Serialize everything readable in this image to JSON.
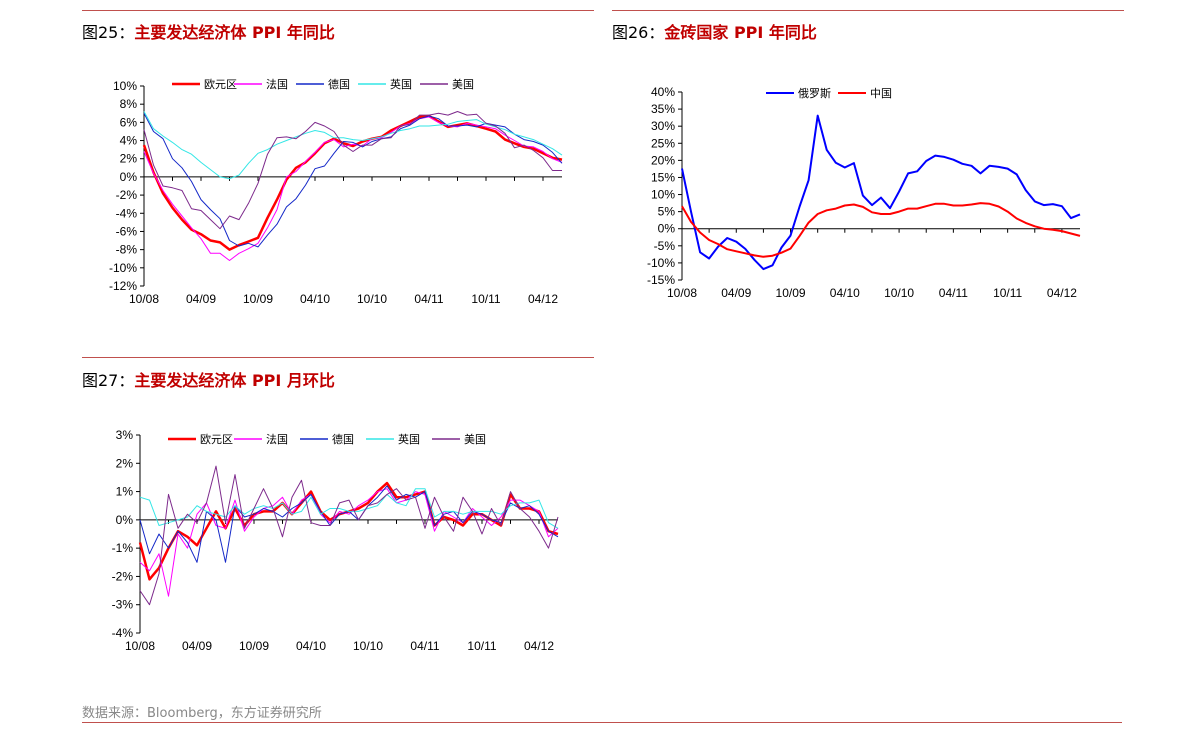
{
  "figures": [
    {
      "id": "fig25",
      "label": "图25：",
      "title": "主要发达经济体 PPI 年同比"
    },
    {
      "id": "fig26",
      "label": "图26：",
      "title": "金砖国家 PPI 年同比"
    },
    {
      "id": "fig27",
      "label": "图27：",
      "title": "主要发达经济体 PPI 月环比"
    }
  ],
  "source": "数据来源：Bloomberg，东方证券研究所",
  "chart_data": [
    {
      "type": "line",
      "ylim": [
        -12,
        10
      ],
      "yticks": [
        10,
        8,
        6,
        4,
        2,
        0,
        -2,
        -4,
        -6,
        -8,
        -10,
        -12
      ],
      "ytick_labels": [
        "10%",
        "8%",
        "6%",
        "4%",
        "2%",
        "0%",
        "-2%",
        "-4%",
        "-6%",
        "-8%",
        "-10%",
        "-12%"
      ],
      "xtick_labels": [
        "10/08",
        "04/09",
        "10/09",
        "04/10",
        "10/10",
        "04/11",
        "10/11",
        "04/12"
      ],
      "x_count": 45,
      "legend_position": "top",
      "grid": false,
      "series": [
        {
          "name": "欧元区",
          "color": "#ff0000",
          "width": 2.5,
          "values": [
            3.5,
            0.5,
            -1.8,
            -3.4,
            -4.7,
            -5.8,
            -6.3,
            -7.0,
            -7.2,
            -8.0,
            -7.5,
            -7.1,
            -6.7,
            -4.5,
            -2.5,
            -0.3,
            1.0,
            1.6,
            2.6,
            3.7,
            4.2,
            3.7,
            3.4,
            3.9,
            4.2,
            4.4,
            5.1,
            5.6,
            6.1,
            6.6,
            6.7,
            6.1,
            5.5,
            5.7,
            5.9,
            5.6,
            5.3,
            5.0,
            4.1,
            3.7,
            3.3,
            3.1,
            2.6,
            2.1,
            1.9
          ]
        },
        {
          "name": "法国",
          "color": "#ff00ff",
          "width": 1,
          "values": [
            2.8,
            0.4,
            -1.5,
            -3.0,
            -4.3,
            -5.6,
            -6.8,
            -8.4,
            -8.4,
            -9.2,
            -8.4,
            -7.9,
            -7.3,
            -5.6,
            -3.6,
            0.0,
            0.6,
            1.7,
            2.7,
            3.8,
            4.1,
            3.3,
            3.6,
            3.4,
            4.2,
            4.3,
            4.9,
            5.6,
            5.9,
            6.4,
            6.6,
            6.0,
            5.6,
            5.5,
            5.9,
            5.7,
            5.5,
            5.3,
            4.6,
            4.0,
            3.4,
            3.3,
            2.8,
            2.0,
            1.6
          ]
        },
        {
          "name": "德国",
          "color": "#1428c8",
          "width": 1,
          "values": [
            7.0,
            5.0,
            4.2,
            2.0,
            1.0,
            -0.5,
            -2.5,
            -3.6,
            -4.6,
            -7.0,
            -7.6,
            -7.3,
            -7.7,
            -6.4,
            -5.2,
            -3.3,
            -2.4,
            -0.9,
            0.9,
            1.2,
            2.6,
            3.9,
            3.8,
            3.3,
            3.9,
            4.2,
            4.4,
            5.3,
            5.7,
            6.4,
            6.7,
            6.4,
            5.6,
            5.6,
            5.7,
            5.5,
            5.9,
            5.7,
            5.5,
            4.7,
            4.1,
            3.9,
            3.5,
            2.7,
            1.5
          ]
        },
        {
          "name": "英国",
          "color": "#33e6e6",
          "width": 1,
          "values": [
            7.2,
            5.3,
            4.5,
            3.8,
            3.0,
            2.5,
            1.6,
            0.8,
            0.0,
            -0.2,
            0.2,
            1.5,
            2.6,
            3.0,
            3.6,
            4.0,
            4.4,
            4.8,
            5.1,
            4.9,
            4.3,
            4.3,
            4.1,
            4.0,
            4.2,
            4.4,
            4.8,
            5.1,
            5.3,
            5.6,
            5.6,
            5.7,
            5.8,
            6.1,
            6.2,
            6.3,
            5.8,
            5.5,
            5.2,
            4.7,
            4.4,
            4.1,
            3.6,
            3.1,
            2.4
          ]
        },
        {
          "name": "美国",
          "color": "#7d2a8c",
          "width": 1,
          "values": [
            5.2,
            1.3,
            -1.0,
            -1.2,
            -1.5,
            -3.5,
            -3.7,
            -4.7,
            -5.7,
            -4.3,
            -4.7,
            -2.9,
            -0.7,
            2.5,
            4.3,
            4.4,
            4.2,
            5.0,
            6.0,
            5.6,
            5.0,
            3.5,
            2.8,
            3.5,
            3.5,
            4.2,
            4.3,
            5.6,
            5.8,
            6.8,
            6.8,
            7.0,
            6.8,
            7.2,
            6.8,
            6.9,
            5.9,
            5.6,
            4.8,
            3.2,
            3.5,
            2.9,
            2.1,
            0.7,
            0.7
          ]
        }
      ]
    },
    {
      "type": "line",
      "ylim": [
        -15,
        40
      ],
      "yticks": [
        40,
        35,
        30,
        25,
        20,
        15,
        10,
        5,
        0,
        -5,
        -10,
        -15
      ],
      "ytick_labels": [
        "40%",
        "35%",
        "30%",
        "25%",
        "20%",
        "15%",
        "10%",
        "5%",
        "0%",
        "-5%",
        "-10%",
        "-15%"
      ],
      "xtick_labels": [
        "10/08",
        "04/09",
        "10/09",
        "04/10",
        "10/10",
        "04/11",
        "10/11",
        "04/12"
      ],
      "x_count": 45,
      "legend_position": "top",
      "grid": false,
      "series": [
        {
          "name": "俄罗斯",
          "color": "#0000ff",
          "width": 2,
          "values": [
            17.6,
            5.0,
            -6.9,
            -8.7,
            -5.2,
            -2.7,
            -3.8,
            -5.9,
            -9.1,
            -11.8,
            -10.7,
            -5.5,
            -2.0,
            6.5,
            14.2,
            33.1,
            23.1,
            19.3,
            17.9,
            19.2,
            9.7,
            6.9,
            9.1,
            6.0,
            10.9,
            16.2,
            16.8,
            19.8,
            21.4,
            21.0,
            20.2,
            19.0,
            18.4,
            16.2,
            18.4,
            18.1,
            17.6,
            15.9,
            11.3,
            8.0,
            6.9,
            7.2,
            6.6,
            3.1,
            4.2
          ]
        },
        {
          "name": "中国",
          "color": "#ff0000",
          "width": 2,
          "values": [
            6.6,
            2.0,
            -1.1,
            -3.3,
            -4.5,
            -6.0,
            -6.6,
            -7.2,
            -7.8,
            -8.2,
            -7.9,
            -7.0,
            -5.8,
            -2.1,
            1.8,
            4.3,
            5.4,
            5.9,
            6.8,
            7.1,
            6.4,
            4.8,
            4.3,
            4.3,
            5.0,
            5.9,
            5.9,
            6.6,
            7.3,
            7.3,
            6.8,
            6.8,
            7.1,
            7.5,
            7.3,
            6.5,
            5.0,
            3.0,
            1.7,
            0.7,
            0.0,
            -0.3,
            -0.7,
            -1.4,
            -2.1
          ]
        }
      ]
    },
    {
      "type": "line",
      "ylim": [
        -4,
        3
      ],
      "yticks": [
        3,
        2,
        1,
        0,
        -1,
        -2,
        -3,
        -4
      ],
      "ytick_labels": [
        "3%",
        "2%",
        "1%",
        "0%",
        "-1%",
        "-2%",
        "-3%",
        "-4%"
      ],
      "xtick_labels": [
        "10/08",
        "04/09",
        "10/09",
        "04/10",
        "10/10",
        "04/11",
        "10/11",
        "04/12"
      ],
      "x_count": 45,
      "legend_position": "top",
      "grid": false,
      "series": [
        {
          "name": "欧元区",
          "color": "#ff0000",
          "width": 2.5,
          "values": [
            -0.8,
            -2.1,
            -1.7,
            -1.0,
            -0.4,
            -0.6,
            -0.9,
            -0.3,
            0.3,
            -0.3,
            0.4,
            -0.2,
            0.2,
            0.3,
            0.3,
            0.6,
            0.2,
            0.6,
            1.0,
            0.3,
            0.0,
            0.2,
            0.3,
            0.4,
            0.6,
            1.0,
            1.3,
            0.8,
            0.8,
            0.9,
            1.0,
            -0.2,
            0.1,
            0.0,
            -0.2,
            0.2,
            0.2,
            0.0,
            -0.2,
            0.9,
            0.4,
            0.4,
            0.3,
            -0.4,
            -0.5
          ]
        },
        {
          "name": "法国",
          "color": "#ff00ff",
          "width": 1,
          "values": [
            -1.5,
            -1.8,
            -1.2,
            -2.7,
            -0.5,
            -1.0,
            0.2,
            0.6,
            -0.2,
            -0.3,
            0.7,
            -0.4,
            0.1,
            0.4,
            0.5,
            0.8,
            0.2,
            0.7,
            0.9,
            0.2,
            -0.1,
            0.3,
            0.2,
            0.5,
            0.7,
            1.0,
            1.1,
            0.6,
            0.7,
            1.0,
            0.9,
            -0.4,
            0.3,
            0.1,
            -0.1,
            0.4,
            0.1,
            -0.2,
            0.1,
            0.7,
            0.7,
            0.5,
            0.3,
            -0.6,
            -0.3
          ]
        },
        {
          "name": "德国",
          "color": "#1428c8",
          "width": 1,
          "values": [
            0.0,
            -1.2,
            -0.5,
            -1.0,
            -0.4,
            -0.8,
            -1.5,
            0.3,
            0.0,
            -1.5,
            0.5,
            0.1,
            0.2,
            0.4,
            0.3,
            0.1,
            0.4,
            0.6,
            0.9,
            0.3,
            -0.2,
            0.2,
            0.3,
            0.0,
            0.5,
            0.8,
            1.2,
            0.7,
            0.9,
            0.8,
            1.0,
            -0.2,
            0.2,
            0.3,
            -0.1,
            0.3,
            0.2,
            0.0,
            -0.1,
            0.6,
            0.4,
            0.5,
            0.2,
            -0.4,
            -0.6
          ]
        },
        {
          "name": "英国",
          "color": "#33e6e6",
          "width": 1,
          "values": [
            0.8,
            0.7,
            -0.2,
            -0.1,
            0.0,
            0.1,
            0.5,
            0.3,
            0.2,
            0.1,
            0.5,
            0.2,
            0.4,
            0.5,
            0.4,
            0.6,
            0.2,
            0.3,
            0.8,
            0.2,
            0.4,
            0.4,
            0.3,
            0.3,
            0.4,
            0.5,
            0.9,
            0.6,
            0.5,
            1.1,
            1.1,
            0.1,
            0.3,
            0.3,
            0.2,
            0.3,
            0.3,
            0.3,
            0.2,
            0.5,
            0.6,
            0.6,
            0.7,
            -0.1,
            -0.3
          ]
        },
        {
          "name": "美国",
          "color": "#7d2a8c",
          "width": 1,
          "values": [
            -2.5,
            -3.0,
            -1.9,
            0.9,
            -0.3,
            0.2,
            -0.1,
            0.6,
            1.9,
            -0.1,
            1.6,
            -0.3,
            0.4,
            1.1,
            0.4,
            -0.6,
            0.8,
            1.4,
            -0.1,
            -0.2,
            -0.2,
            0.6,
            0.7,
            0.0,
            0.5,
            0.6,
            0.9,
            1.1,
            0.7,
            0.8,
            -0.3,
            0.8,
            0.1,
            -0.4,
            0.8,
            0.3,
            -0.5,
            0.4,
            -0.2,
            1.0,
            0.4,
            0.1,
            -0.4,
            -1.0,
            0.1
          ]
        }
      ]
    }
  ]
}
